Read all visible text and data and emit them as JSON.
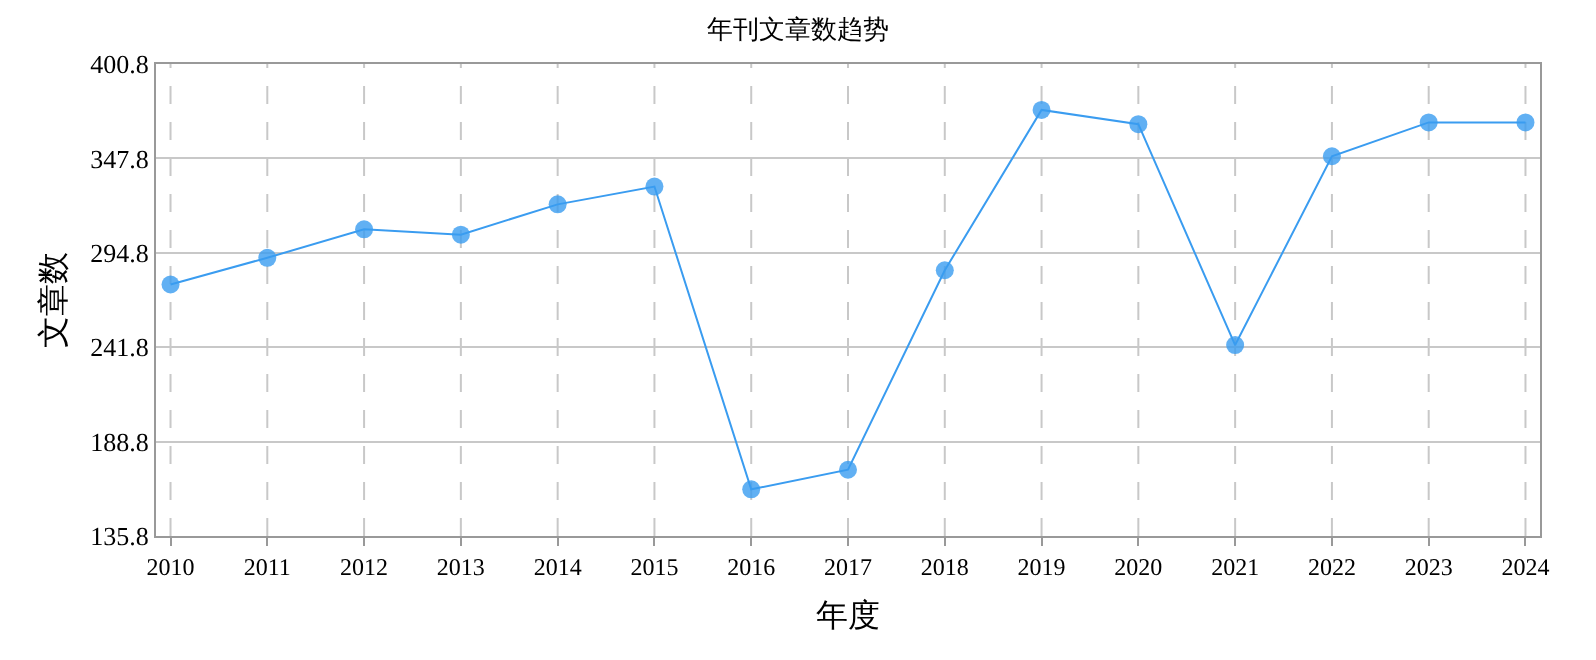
{
  "chart_data": {
    "type": "line",
    "title": "年刊文章数趋势",
    "xlabel": "年度",
    "ylabel": "文章数",
    "categories": [
      "2010",
      "2011",
      "2012",
      "2013",
      "2014",
      "2015",
      "2016",
      "2017",
      "2018",
      "2019",
      "2020",
      "2021",
      "2022",
      "2023",
      "2024"
    ],
    "series": [
      {
        "color": "#3a9cf0",
        "values": [
          277,
          292,
          308,
          305,
          322,
          332,
          162,
          173,
          285,
          375,
          367,
          243,
          349,
          368,
          368
        ]
      }
    ],
    "ylim": [
      135.8,
      400.8
    ],
    "yticks": [
      135.8,
      188.8,
      241.8,
      294.8,
      347.8,
      400.8
    ],
    "grid": true,
    "marker": "circle",
    "line_style": "solid"
  }
}
